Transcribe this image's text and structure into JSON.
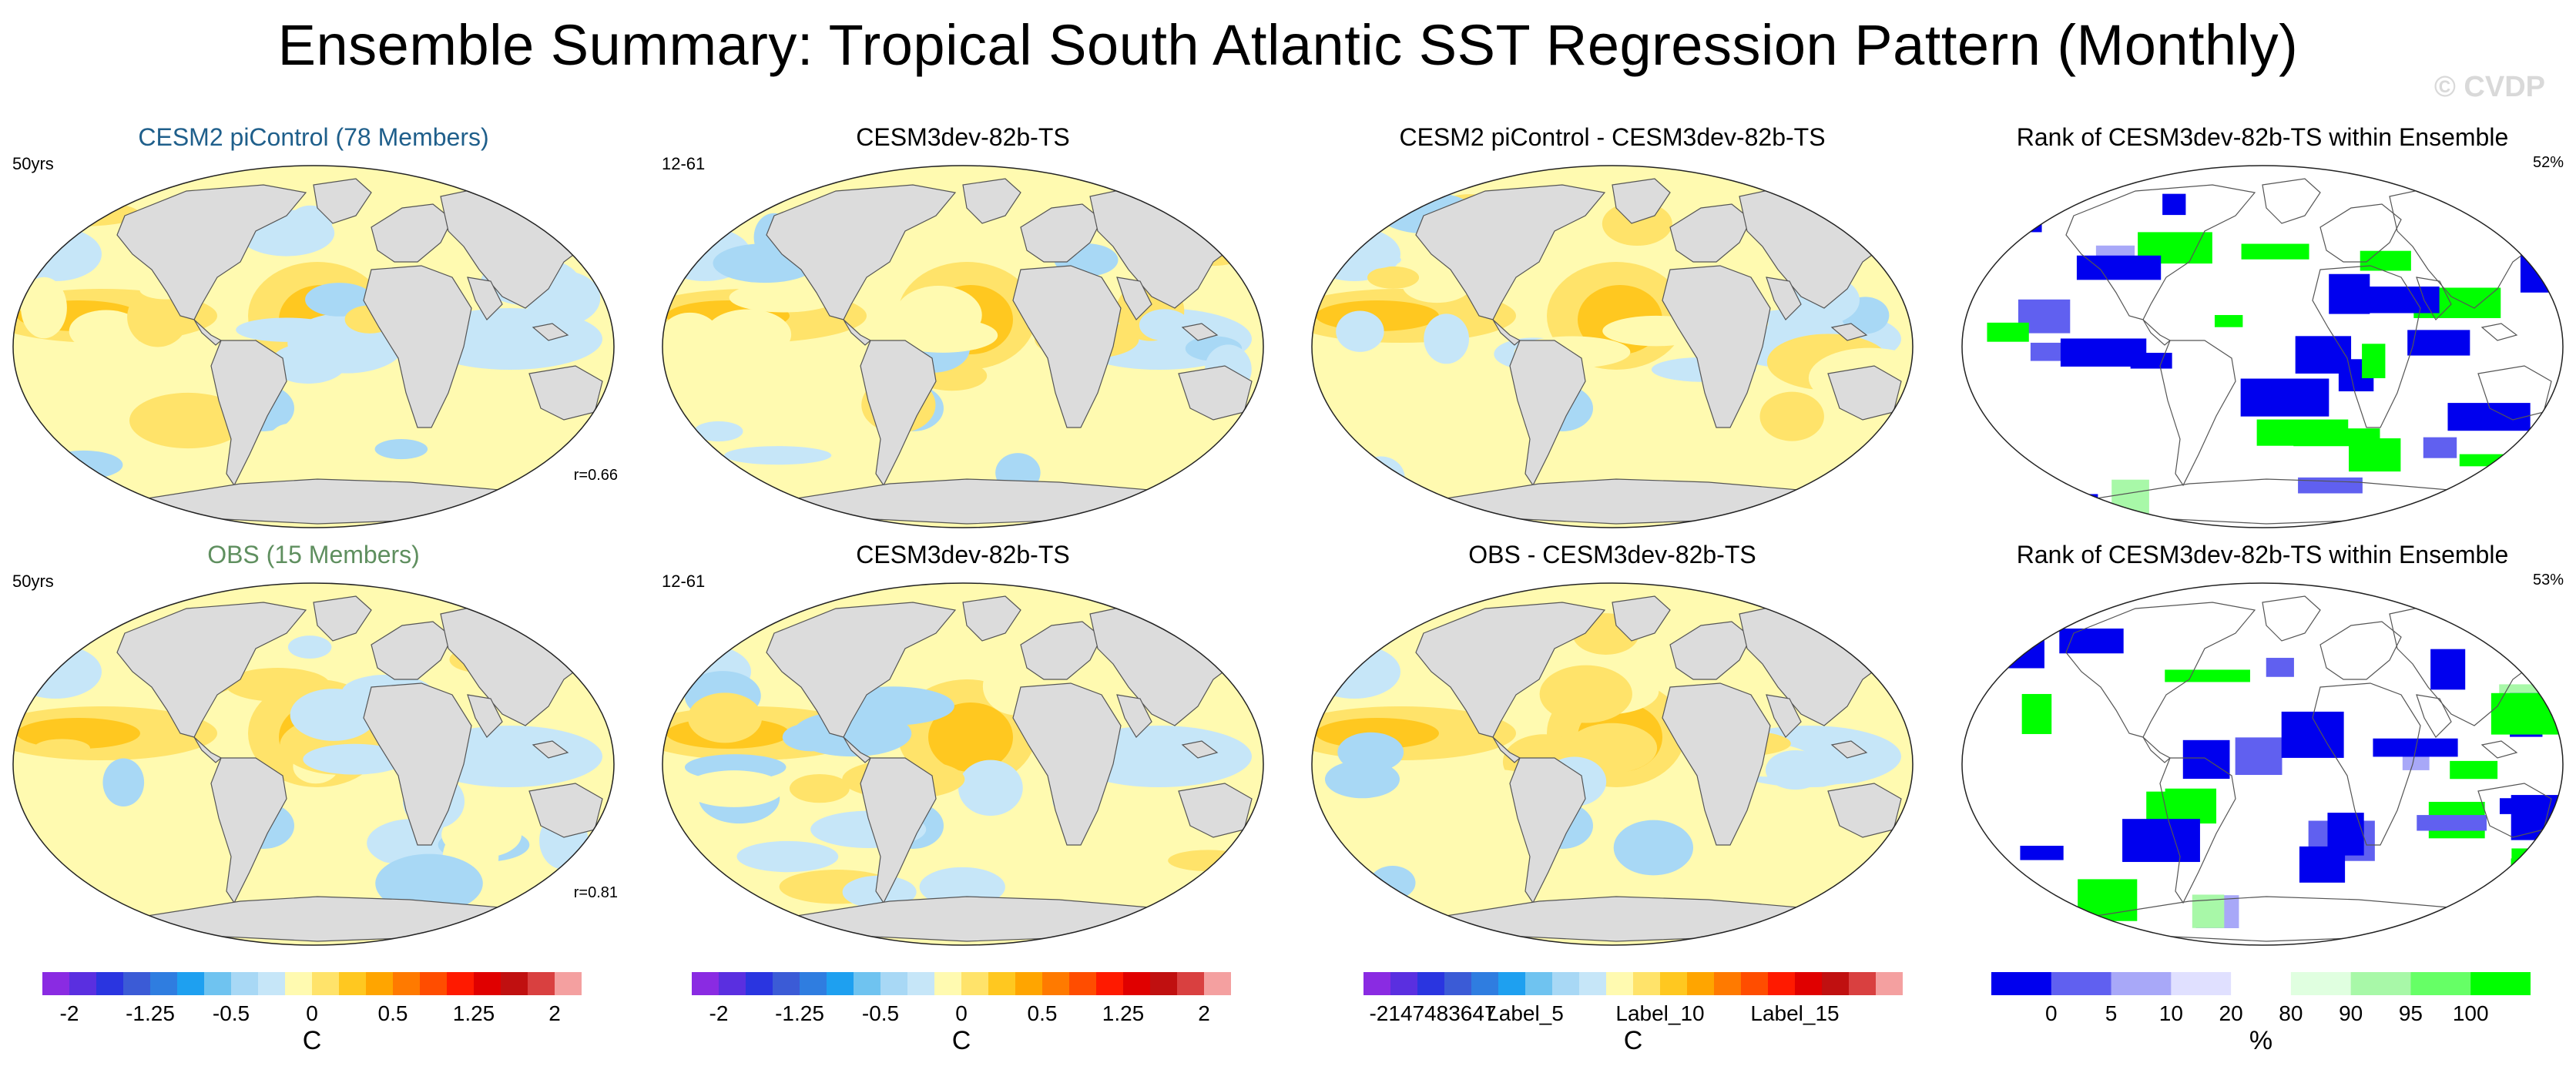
{
  "title": "Ensemble Summary: Tropical South Atlantic SST Regression Pattern (Monthly)",
  "watermark": "© CVDP",
  "colors": {
    "land": "#dcdcdc",
    "title_cesm2": "#1f5f8b",
    "title_obs": "#5f8f5f",
    "diverging": [
      "#8a2be2",
      "#5a2fe0",
      "#2a35e0",
      "#3b5bd6",
      "#2f7de0",
      "#1ea0f0",
      "#6fc3f0",
      "#a8d8f5",
      "#c6e6f8",
      "#fffab0",
      "#ffe36a",
      "#ffc820",
      "#ffa500",
      "#ff7a00",
      "#ff4d00",
      "#ff1a00",
      "#e00000",
      "#c01010",
      "#d94040",
      "#f4a0a0"
    ],
    "rank": [
      "#0000ee",
      "#6060f0",
      "#a8a8f8",
      "#e0e0ff",
      "#ffffff",
      "#e0ffe0",
      "#a8f8a8",
      "#66ff66",
      "#00ff00"
    ]
  },
  "panels": [
    {
      "title": "CESM2 piControl (78 Members)",
      "title_color": "#1f5f8b",
      "corner_left": "50yrs",
      "corner_right": "",
      "bottom_right": "r=0.66",
      "kind": "field"
    },
    {
      "title": "CESM3dev-82b-TS",
      "title_color": "#000000",
      "corner_left": "12-61",
      "corner_right": "",
      "bottom_right": "",
      "kind": "field"
    },
    {
      "title": "CESM2 piControl - CESM3dev-82b-TS",
      "title_color": "#000000",
      "corner_left": "",
      "corner_right": "",
      "bottom_right": "",
      "kind": "diff"
    },
    {
      "title": "Rank of CESM3dev-82b-TS within Ensemble",
      "title_color": "#000000",
      "corner_left": "",
      "corner_right": "52%",
      "bottom_right": "",
      "kind": "rank"
    },
    {
      "title": "OBS (15 Members)",
      "title_color": "#5f8f5f",
      "corner_left": "50yrs",
      "corner_right": "",
      "bottom_right": "r=0.81",
      "kind": "field"
    },
    {
      "title": "CESM3dev-82b-TS",
      "title_color": "#000000",
      "corner_left": "12-61",
      "corner_right": "",
      "bottom_right": "",
      "kind": "field"
    },
    {
      "title": "OBS - CESM3dev-82b-TS",
      "title_color": "#000000",
      "corner_left": "",
      "corner_right": "",
      "bottom_right": "",
      "kind": "diff"
    },
    {
      "title": "Rank of CESM3dev-82b-TS within Ensemble",
      "title_color": "#000000",
      "corner_left": "",
      "corner_right": "53%",
      "bottom_right": "",
      "kind": "rank"
    }
  ],
  "colorbars": [
    {
      "type": "diverging",
      "labels": [
        "-2",
        "-1.25",
        "-0.5",
        "0",
        "0.5",
        "1.25",
        "2"
      ],
      "unit": "C"
    },
    {
      "type": "diverging",
      "labels": [
        "-2",
        "-1.25",
        "-0.5",
        "0",
        "0.5",
        "1.25",
        "2"
      ],
      "unit": "C"
    },
    {
      "type": "diverging",
      "labels": [
        "-2147483647",
        "Label_5",
        "Label_10",
        "Label_15"
      ],
      "unit": "C"
    },
    {
      "type": "rank",
      "labels": [
        "0",
        "5",
        "10",
        "20",
        "80",
        "90",
        "95",
        "100"
      ],
      "unit": "%"
    }
  ]
}
